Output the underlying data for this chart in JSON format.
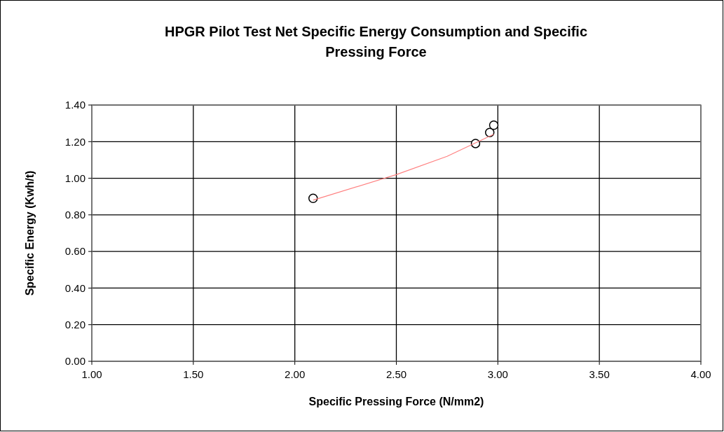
{
  "chart_data": {
    "type": "scatter",
    "title": "HPGR Pilot Test Net Specific Energy Consumption and Specific Pressing Force",
    "xlabel": "Specific Pressing Force (N/mm2)",
    "ylabel": "Specific Energy (Kwh/t)",
    "xlim": [
      1,
      4
    ],
    "xticks": [
      {
        "value": 1,
        "label": "1.00"
      },
      {
        "value": 1.5,
        "label": "1.50"
      },
      {
        "value": 2,
        "label": "2.00"
      },
      {
        "value": 2.5,
        "label": "2.50"
      },
      {
        "value": 3,
        "label": "3.00"
      },
      {
        "value": 3.5,
        "label": "3.50"
      },
      {
        "value": 4,
        "label": "4.00"
      }
    ],
    "ylim": [
      0,
      1.4
    ],
    "yticks": [
      {
        "value": 0,
        "label": "0.00"
      },
      {
        "value": 0.2,
        "label": "0.20"
      },
      {
        "value": 0.4,
        "label": "0.40"
      },
      {
        "value": 0.6,
        "label": "0.60"
      },
      {
        "value": 0.8,
        "label": "0.80"
      },
      {
        "value": 1,
        "label": "1.00"
      },
      {
        "value": 1.2,
        "label": "1.20"
      },
      {
        "value": 1.4,
        "label": "1.40"
      }
    ],
    "grid": true,
    "marker": "circle",
    "series": [
      {
        "color": "#000000",
        "x": [
          2.09,
          2.89,
          2.96,
          2.98
        ],
        "values": [
          0.89,
          1.19,
          1.25,
          1.29
        ]
      },
      {
        "type": "line",
        "marker": "none",
        "color": "#ff8080",
        "x": [
          2.09,
          2.5,
          2.75,
          2.98
        ],
        "values": [
          0.88,
          1.02,
          1.12,
          1.24
        ]
      }
    ]
  }
}
